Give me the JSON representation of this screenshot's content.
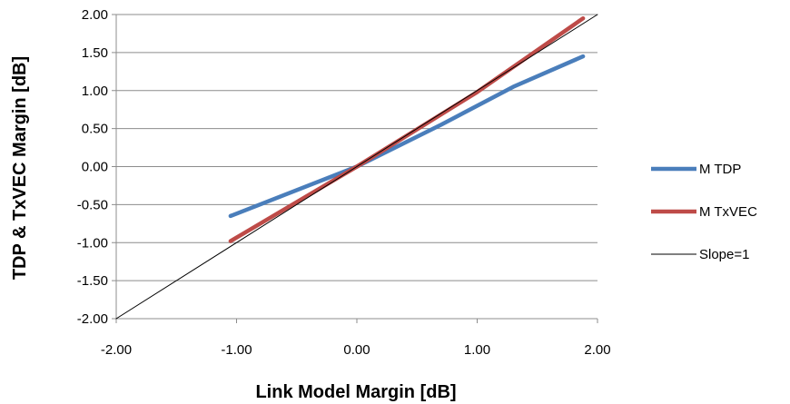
{
  "chart_data": {
    "type": "line",
    "title": "",
    "xlabel": "Link Model Margin [dB]",
    "ylabel": "TDP & TxVEC Margin [dB]",
    "xlim": [
      -2.0,
      2.0
    ],
    "ylim": [
      -2.0,
      2.0
    ],
    "x_ticks": [
      "-2.00",
      "-1.00",
      "0.00",
      "1.00",
      "2.00"
    ],
    "y_ticks": [
      "2.00",
      "1.50",
      "1.00",
      "0.50",
      "0.00",
      "-0.50",
      "-1.00",
      "-1.50",
      "-2.00"
    ],
    "grid": "horizontal",
    "legend_position": "right",
    "series": [
      {
        "name": "M  TDP",
        "color": "#4a7ebb",
        "points": [
          [
            -1.05,
            -0.65
          ],
          [
            0.0,
            0.0
          ],
          [
            0.7,
            0.55
          ],
          [
            1.3,
            1.05
          ],
          [
            1.88,
            1.45
          ]
        ]
      },
      {
        "name": "M  TxVEC",
        "color": "#be4b48",
        "points": [
          [
            -1.05,
            -0.98
          ],
          [
            0.0,
            0.0
          ],
          [
            1.0,
            0.98
          ],
          [
            1.88,
            1.95
          ]
        ]
      },
      {
        "name": "Slope=1",
        "color": "#000000",
        "points": [
          [
            -2.0,
            -2.0
          ],
          [
            2.0,
            2.0
          ]
        ]
      }
    ]
  }
}
